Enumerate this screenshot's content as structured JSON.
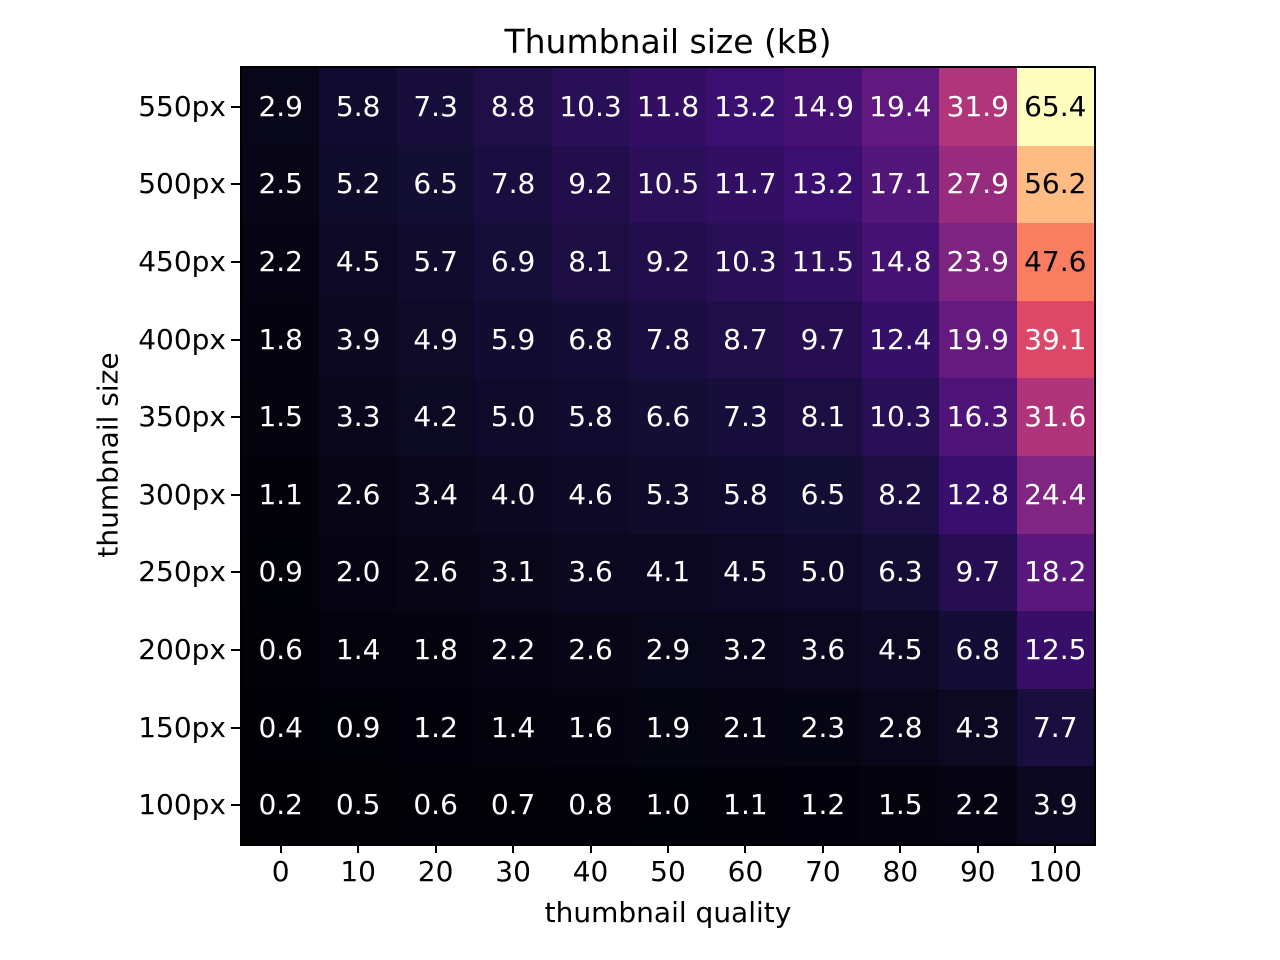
{
  "chart_data": {
    "type": "heatmap",
    "title": "Thumbnail size (kB)",
    "xlabel": "thumbnail quality",
    "ylabel": "thumbnail size",
    "x_tick_labels": [
      "0",
      "10",
      "20",
      "30",
      "40",
      "50",
      "60",
      "70",
      "80",
      "90",
      "100"
    ],
    "y_tick_labels": [
      "550px",
      "500px",
      "450px",
      "400px",
      "350px",
      "300px",
      "250px",
      "200px",
      "150px",
      "100px"
    ],
    "values": [
      [
        2.9,
        5.8,
        7.3,
        8.8,
        10.3,
        11.8,
        13.2,
        14.9,
        19.4,
        31.9,
        65.4
      ],
      [
        2.5,
        5.2,
        6.5,
        7.8,
        9.2,
        10.5,
        11.7,
        13.2,
        17.1,
        27.9,
        56.2
      ],
      [
        2.2,
        4.5,
        5.7,
        6.9,
        8.1,
        9.2,
        10.3,
        11.5,
        14.8,
        23.9,
        47.6
      ],
      [
        1.8,
        3.9,
        4.9,
        5.9,
        6.8,
        7.8,
        8.7,
        9.7,
        12.4,
        19.9,
        39.1
      ],
      [
        1.5,
        3.3,
        4.2,
        5.0,
        5.8,
        6.6,
        7.3,
        8.1,
        10.3,
        16.3,
        31.6
      ],
      [
        1.1,
        2.6,
        3.4,
        4.0,
        4.6,
        5.3,
        5.8,
        6.5,
        8.2,
        12.8,
        24.4
      ],
      [
        0.9,
        2.0,
        2.6,
        3.1,
        3.6,
        4.1,
        4.5,
        5.0,
        6.3,
        9.7,
        18.2
      ],
      [
        0.6,
        1.4,
        1.8,
        2.2,
        2.6,
        2.9,
        3.2,
        3.6,
        4.5,
        6.8,
        12.5
      ],
      [
        0.4,
        0.9,
        1.2,
        1.4,
        1.6,
        1.9,
        2.1,
        2.3,
        2.8,
        4.3,
        7.7
      ],
      [
        0.2,
        0.5,
        0.6,
        0.7,
        0.8,
        1.0,
        1.1,
        1.2,
        1.5,
        2.2,
        3.9
      ]
    ],
    "value_decimals": 1,
    "vmin": 0.2,
    "vmax": 65.4,
    "colormap": "magma",
    "colormap_stops": [
      [
        0.0,
        "#000004"
      ],
      [
        0.1,
        "#140E36"
      ],
      [
        0.2,
        "#3B0F70"
      ],
      [
        0.3,
        "#641A80"
      ],
      [
        0.4,
        "#8C2981"
      ],
      [
        0.5,
        "#B73779"
      ],
      [
        0.6,
        "#DE4968"
      ],
      [
        0.7,
        "#F7705C"
      ],
      [
        0.8,
        "#FE9F6D"
      ],
      [
        0.9,
        "#FECF92"
      ],
      [
        1.0,
        "#FCFDBF"
      ]
    ],
    "annotation_color_light": "#FFFFFF",
    "annotation_color_dark": "#000000",
    "annotation_dark_threshold": 0.62,
    "background": "#FFFFFF",
    "grid": false,
    "legend": "none"
  }
}
